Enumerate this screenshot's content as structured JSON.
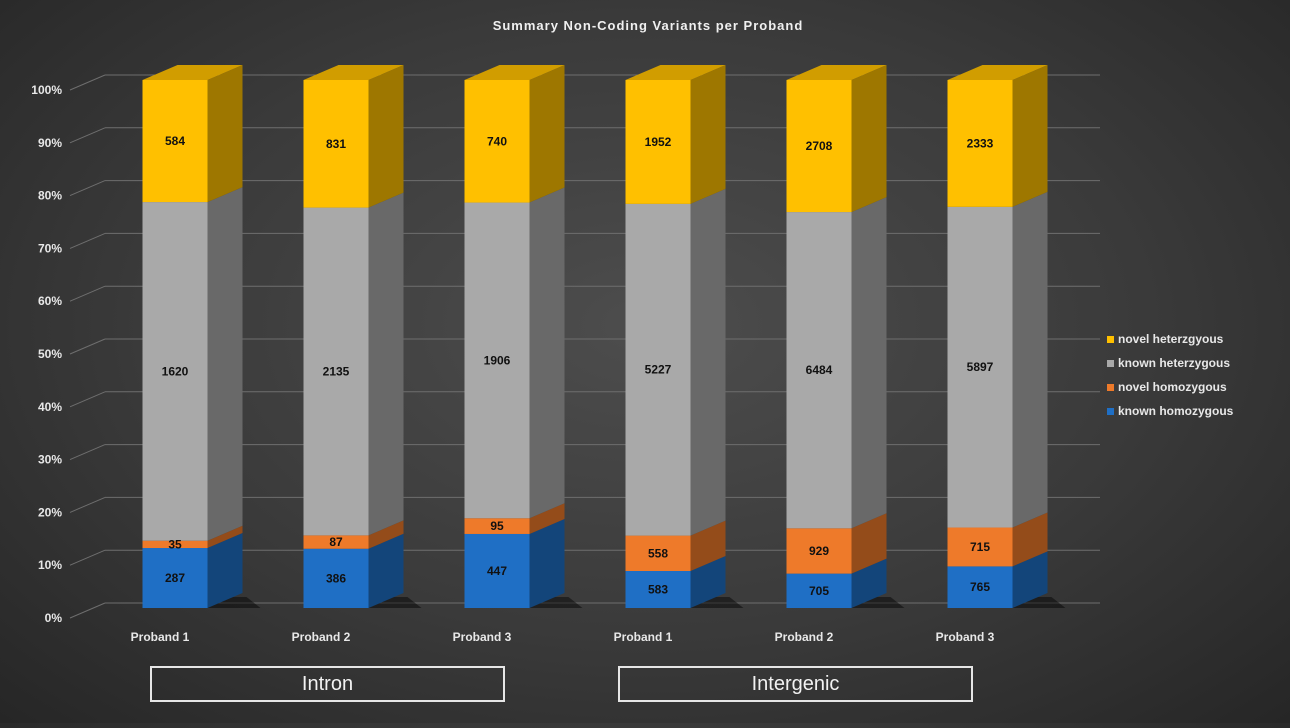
{
  "colors": {
    "known_homozygous": "#1f6fc5",
    "novel_homozygous": "#ee7a2a",
    "known_heterozygous": "#a9a9a9",
    "novel_heterozygous": "#ffc000"
  },
  "groups": [
    "Intron",
    "Intergenic"
  ],
  "chart_data": {
    "type": "bar",
    "stacked": "percent",
    "title": "Summary Non-Coding Variants per Proband",
    "categories": [
      "Proband 1",
      "Proband 2",
      "Proband 3",
      "Proband 1",
      "Proband 2",
      "Proband 3"
    ],
    "category_groups": [
      "Intron",
      "Intron",
      "Intron",
      "Intergenic",
      "Intergenic",
      "Intergenic"
    ],
    "series": [
      {
        "name": "known homozygous",
        "values": [
          287,
          386,
          447,
          583,
          705,
          765
        ]
      },
      {
        "name": "novel homozygous",
        "values": [
          35,
          87,
          95,
          558,
          929,
          715
        ]
      },
      {
        "name": "known heterzygous",
        "values": [
          1620,
          2135,
          1906,
          5227,
          6484,
          5897
        ]
      },
      {
        "name": "novel heterzgyous",
        "values": [
          584,
          831,
          740,
          1952,
          2708,
          2333
        ]
      }
    ],
    "legend_order": [
      "novel heterzgyous",
      "known heterzygous",
      "novel homozygous",
      "known homozygous"
    ],
    "y_tick_labels": [
      "0%",
      "10%",
      "20%",
      "30%",
      "40%",
      "50%",
      "60%",
      "70%",
      "80%",
      "90%",
      "100%"
    ],
    "ylim": [
      0,
      100
    ],
    "grid": true,
    "legend_position": "right"
  }
}
